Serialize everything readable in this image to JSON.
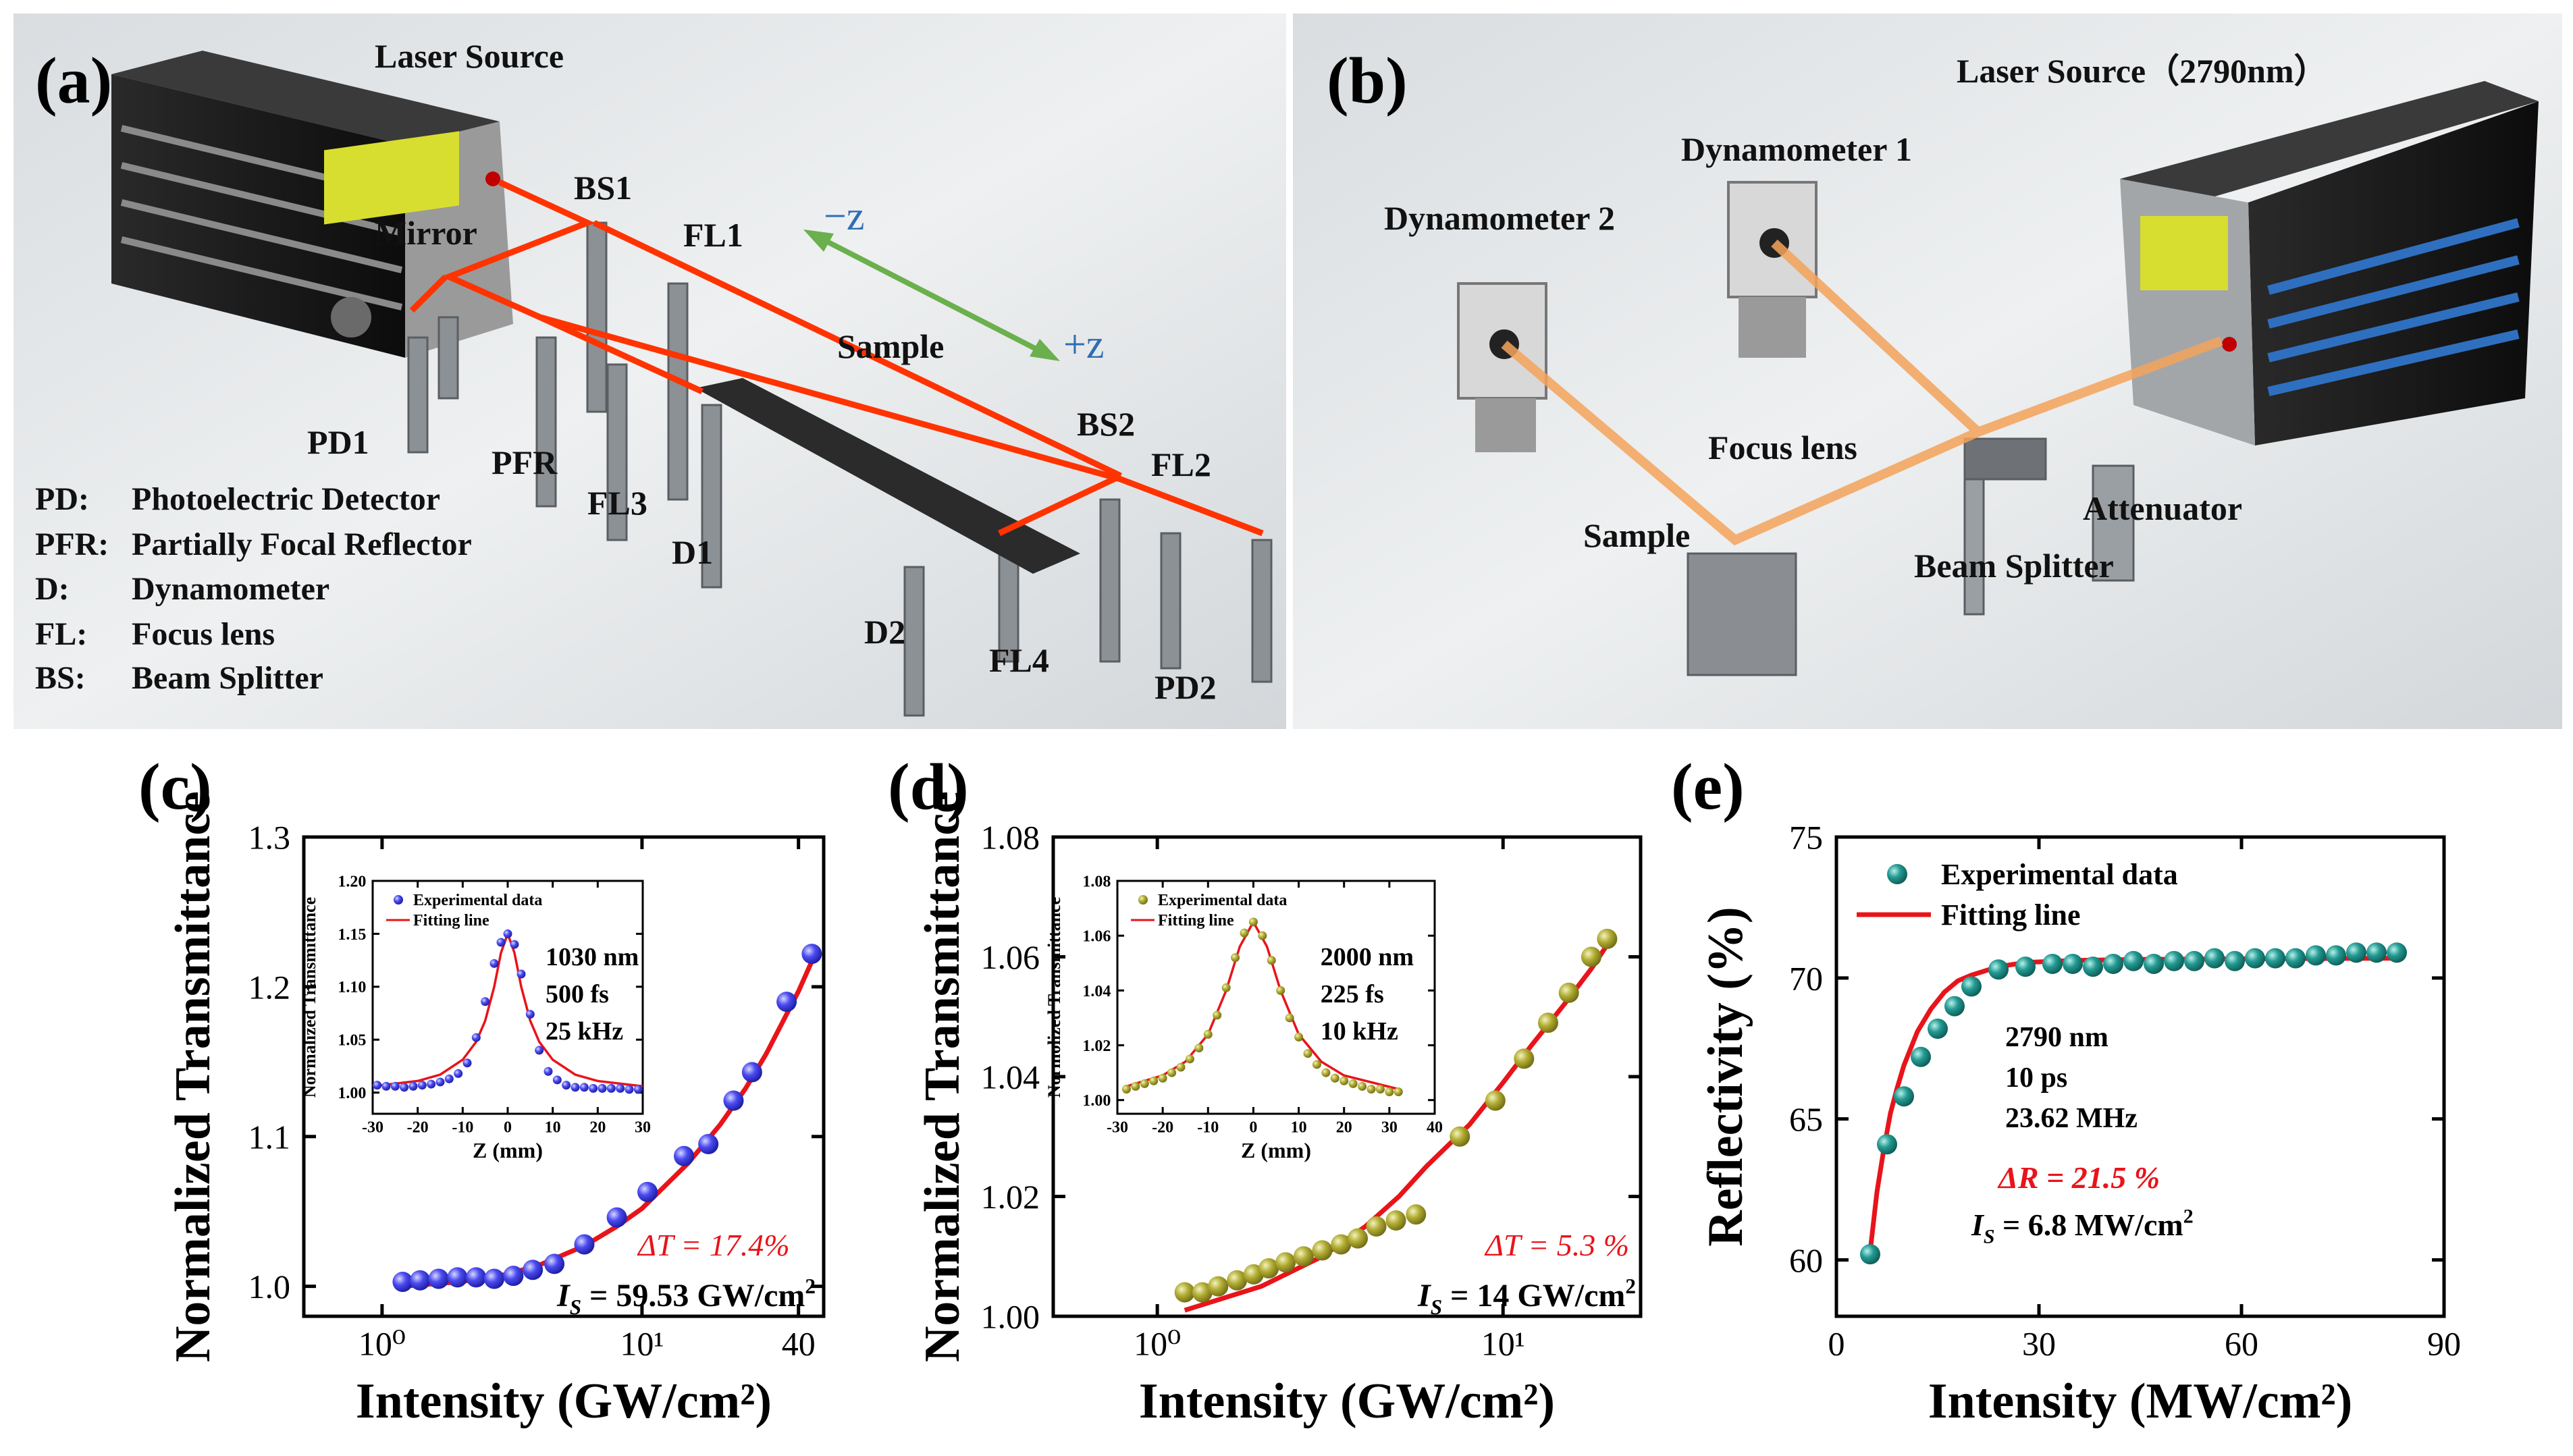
{
  "panel_a": {
    "panel_label": "(a)",
    "labels": {
      "laser_source": "Laser Source",
      "mirror": "Mirror",
      "bs1": "BS1",
      "fl1": "FL1",
      "minus_z": "−z",
      "plus_z": "+z",
      "sample": "Sample",
      "bs2": "BS2",
      "fl2": "FL2",
      "pd1": "PD1",
      "pfr": "PFR",
      "fl3": "FL3",
      "d1": "D1",
      "d2": "D2",
      "fl4": "FL4",
      "pd2": "PD2"
    },
    "legend": [
      {
        "abbr": "PD:",
        "text": "Photoelectric Detector"
      },
      {
        "abbr": "PFR:",
        "text": "Partially Focal Reflector"
      },
      {
        "abbr": "D:",
        "text": "Dynamometer"
      },
      {
        "abbr": "FL:",
        "text": "Focus lens"
      },
      {
        "abbr": "BS:",
        "text": "Beam Splitter"
      }
    ]
  },
  "panel_b": {
    "panel_label": "(b)",
    "labels": {
      "laser_source": "Laser Source（2790nm）",
      "dynamometer1": "Dynamometer 1",
      "dynamometer2": "Dynamometer 2",
      "focus_lens": "Focus lens",
      "sample": "Sample",
      "beam_splitter": "Beam Splitter",
      "attenuator": "Attenuator"
    }
  },
  "colors": {
    "blue_marker": "#3a3ae6",
    "olive_marker": "#a8a42e",
    "teal_marker": "#1f8f8a",
    "fit_line": "#e8141a",
    "laser": "#ff3300",
    "laser_b": "#f4a35a",
    "green_arrow": "#6ab04c",
    "z_label": "#2f6db5"
  },
  "chart_data": [
    {
      "id": "c",
      "type": "scatter",
      "panel_label": "(c)",
      "title": "",
      "xlabel": "Intensity (GW/cm²)",
      "ylabel": "Normalized Transmittance",
      "xscale": "log",
      "xlim": [
        0.5,
        50
      ],
      "ylim": [
        0.98,
        1.3
      ],
      "xticks": [
        1,
        10,
        40
      ],
      "xtick_labels": [
        "10⁰",
        "10¹",
        "40"
      ],
      "yticks": [
        1.0,
        1.1,
        1.2,
        1.3
      ],
      "ytick_labels": [
        "1.0",
        "1.1",
        "1.2",
        "1.3"
      ],
      "series": [
        {
          "name": "Experimental data",
          "x": [
            1.2,
            1.4,
            1.65,
            1.95,
            2.3,
            2.7,
            3.2,
            3.8,
            4.6,
            6.0,
            8.0,
            10.5,
            14.5,
            18.0,
            22.5,
            26.5,
            36.0,
            45.0
          ],
          "y": [
            1.003,
            1.004,
            1.005,
            1.006,
            1.006,
            1.005,
            1.007,
            1.011,
            1.015,
            1.028,
            1.046,
            1.063,
            1.087,
            1.095,
            1.124,
            1.143,
            1.19,
            1.222
          ]
        },
        {
          "name": "Fitting line",
          "x": [
            1.2,
            2,
            3,
            4,
            6,
            8,
            10,
            15,
            20,
            25,
            30,
            40,
            45
          ],
          "y": [
            1.0,
            1.003,
            1.008,
            1.014,
            1.027,
            1.04,
            1.052,
            1.082,
            1.108,
            1.132,
            1.155,
            1.197,
            1.217
          ]
        }
      ],
      "annotations": {
        "delta": "ΔT = 17.4%",
        "is_sym": "I",
        "is_sub": "S",
        "is_value": " = 59.53 GW/cm",
        "is_sup": "2"
      },
      "inset": {
        "xlabel": "Z (mm)",
        "ylabel": "Normalized Transmittance",
        "xlim": [
          -30,
          30
        ],
        "ylim": [
          0.98,
          1.2
        ],
        "xticks": [
          -30,
          -20,
          -10,
          0,
          10,
          20,
          30
        ],
        "xtick_labels": [
          "-30",
          "-20",
          "-10",
          "0",
          "10",
          "20",
          "30"
        ],
        "yticks": [
          1.0,
          1.05,
          1.1,
          1.15,
          1.2
        ],
        "ytick_labels": [
          "1.00",
          "1.05",
          "1.10",
          "1.15",
          "1.20"
        ],
        "legend": [
          "Experimental data",
          "Fitting line"
        ],
        "params": [
          "1030 nm",
          "500 fs",
          "25 kHz"
        ],
        "series": [
          {
            "name": "Experimental data",
            "x": [
              -29,
              -27,
              -25,
              -23,
              -21,
              -19,
              -17,
              -15,
              -13,
              -11,
              -9,
              -7,
              -5,
              -3,
              -1.5,
              0,
              1.5,
              3,
              5,
              7,
              9,
              11,
              13,
              15,
              17,
              19,
              21,
              23,
              25,
              27,
              29
            ],
            "y": [
              1.007,
              1.006,
              1.006,
              1.005,
              1.006,
              1.007,
              1.008,
              1.01,
              1.013,
              1.018,
              1.028,
              1.052,
              1.086,
              1.122,
              1.142,
              1.15,
              1.14,
              1.112,
              1.074,
              1.04,
              1.02,
              1.012,
              1.007,
              1.005,
              1.005,
              1.004,
              1.004,
              1.004,
              1.004,
              1.003,
              1.003
            ]
          },
          {
            "name": "Fitting line",
            "x": [
              -30,
              -20,
              -15,
              -10,
              -7,
              -5,
              -3,
              -1.5,
              0,
              1.5,
              3,
              5,
              7,
              10,
              15,
              20,
              30
            ],
            "y": [
              1.006,
              1.011,
              1.017,
              1.031,
              1.048,
              1.068,
              1.1,
              1.132,
              1.15,
              1.132,
              1.1,
              1.068,
              1.048,
              1.031,
              1.017,
              1.011,
              1.006
            ]
          }
        ]
      }
    },
    {
      "id": "d",
      "type": "scatter",
      "panel_label": "(d)",
      "title": "",
      "xlabel": "Intensity (GW/cm²)",
      "ylabel": "Normalized Transmittance",
      "xscale": "log",
      "xlim": [
        0.5,
        25
      ],
      "ylim": [
        1.0,
        1.08
      ],
      "xticks": [
        1,
        10
      ],
      "xtick_labels": [
        "10⁰",
        "10¹"
      ],
      "yticks": [
        1.0,
        1.02,
        1.04,
        1.06,
        1.08
      ],
      "ytick_labels": [
        "1.00",
        "1.02",
        "1.04",
        "1.06",
        "1.08"
      ],
      "series": [
        {
          "name": "Experimental data",
          "x": [
            1.2,
            1.35,
            1.5,
            1.7,
            1.9,
            2.1,
            2.35,
            2.65,
            3.0,
            3.4,
            3.8,
            4.3,
            4.9,
            5.6,
            7.5,
            9.5,
            11.5,
            13.5,
            15.5,
            18.0,
            20.0
          ],
          "y": [
            1.004,
            1.004,
            1.005,
            1.006,
            1.007,
            1.008,
            1.009,
            1.01,
            1.011,
            1.012,
            1.013,
            1.015,
            1.016,
            1.017,
            1.03,
            1.036,
            1.043,
            1.049,
            1.054,
            1.06,
            1.063
          ]
        },
        {
          "name": "Fitting line",
          "x": [
            1.2,
            2,
            3,
            4,
            5,
            6,
            8,
            10,
            12,
            15,
            18,
            20
          ],
          "y": [
            1.001,
            1.005,
            1.01,
            1.015,
            1.02,
            1.025,
            1.032,
            1.039,
            1.045,
            1.052,
            1.058,
            1.062
          ]
        }
      ],
      "annotations": {
        "delta": "ΔT = 5.3 %",
        "is_sym": "I",
        "is_sub": "S",
        "is_value": " = 14 GW/cm",
        "is_sup": "2"
      },
      "inset": {
        "xlabel": "Z (mm)",
        "ylabel": "Normolized Transmittance",
        "xlim": [
          -30,
          40
        ],
        "ylim": [
          0.995,
          1.08
        ],
        "xticks": [
          -30,
          -20,
          -10,
          0,
          10,
          20,
          30,
          40
        ],
        "xtick_labels": [
          "-30",
          "-20",
          "-10",
          "0",
          "10",
          "20",
          "30",
          "40"
        ],
        "yticks": [
          1.0,
          1.02,
          1.04,
          1.06,
          1.08
        ],
        "ytick_labels": [
          "1.00",
          "1.02",
          "1.04",
          "1.06",
          "1.08"
        ],
        "legend": [
          "Experimental data",
          "Fitting line"
        ],
        "params": [
          "2000 nm",
          "225 fs",
          "10 kHz"
        ],
        "series": [
          {
            "name": "Experimental data",
            "x": [
              -28,
              -26,
              -24,
              -22,
              -20,
              -18,
              -16,
              -14,
              -12,
              -10,
              -8,
              -6,
              -4,
              -2,
              0,
              2,
              4,
              6,
              8,
              10,
              12,
              14,
              16,
              18,
              20,
              22,
              24,
              26,
              28,
              30,
              32
            ],
            "y": [
              1.004,
              1.005,
              1.006,
              1.007,
              1.008,
              1.01,
              1.012,
              1.015,
              1.019,
              1.024,
              1.031,
              1.041,
              1.052,
              1.061,
              1.065,
              1.06,
              1.051,
              1.04,
              1.03,
              1.023,
              1.017,
              1.013,
              1.01,
              1.008,
              1.007,
              1.006,
              1.005,
              1.004,
              1.004,
              1.003,
              1.003
            ]
          },
          {
            "name": "Fitting line",
            "x": [
              -28,
              -20,
              -15,
              -10,
              -6,
              -3,
              0,
              3,
              6,
              10,
              15,
              20,
              32
            ],
            "y": [
              1.005,
              1.009,
              1.014,
              1.024,
              1.04,
              1.056,
              1.065,
              1.056,
              1.04,
              1.024,
              1.014,
              1.009,
              1.004
            ]
          }
        ]
      }
    },
    {
      "id": "e",
      "type": "scatter",
      "panel_label": "(e)",
      "title": "",
      "xlabel": "Intensity (MW/cm²)",
      "ylabel": "Reflectivity (%)",
      "xscale": "linear",
      "xlim": [
        0,
        90
      ],
      "ylim": [
        58,
        75
      ],
      "xticks": [
        0,
        30,
        60,
        90
      ],
      "xtick_labels": [
        "0",
        "30",
        "60",
        "90"
      ],
      "yticks": [
        60,
        65,
        70,
        75
      ],
      "ytick_labels": [
        "60",
        "65",
        "70",
        "75"
      ],
      "legend": [
        "Experimental data",
        "Fitting line"
      ],
      "series": [
        {
          "name": "Experimental data",
          "x": [
            5,
            7.5,
            10,
            12.5,
            15,
            17.5,
            20,
            24,
            28,
            32,
            35,
            38,
            41,
            44,
            47,
            50,
            53,
            56,
            59,
            62,
            65,
            68,
            71,
            74,
            77,
            80,
            83
          ],
          "y": [
            60.2,
            64.1,
            65.8,
            67.2,
            68.2,
            69.0,
            69.7,
            70.3,
            70.4,
            70.5,
            70.5,
            70.4,
            70.5,
            70.6,
            70.5,
            70.6,
            70.6,
            70.7,
            70.6,
            70.7,
            70.7,
            70.7,
            70.8,
            70.8,
            70.9,
            70.9,
            70.9
          ]
        },
        {
          "name": "Fitting line",
          "x": [
            5,
            6,
            7,
            8,
            9,
            10,
            12,
            14,
            16,
            18,
            20,
            24,
            28,
            35,
            45,
            60,
            83
          ],
          "y": [
            60.3,
            62.4,
            63.9,
            65.2,
            66.1,
            66.9,
            68.1,
            68.9,
            69.5,
            69.9,
            70.1,
            70.4,
            70.55,
            70.62,
            70.66,
            70.68,
            70.7
          ]
        }
      ],
      "params": [
        "2790 nm",
        "10 ps",
        "23.62 MHz"
      ],
      "annotations": {
        "delta": "ΔR = 21.5 %",
        "is_sym": "I",
        "is_sub": "S",
        "is_value": " = 6.8 MW/cm",
        "is_sup": "2"
      }
    }
  ]
}
